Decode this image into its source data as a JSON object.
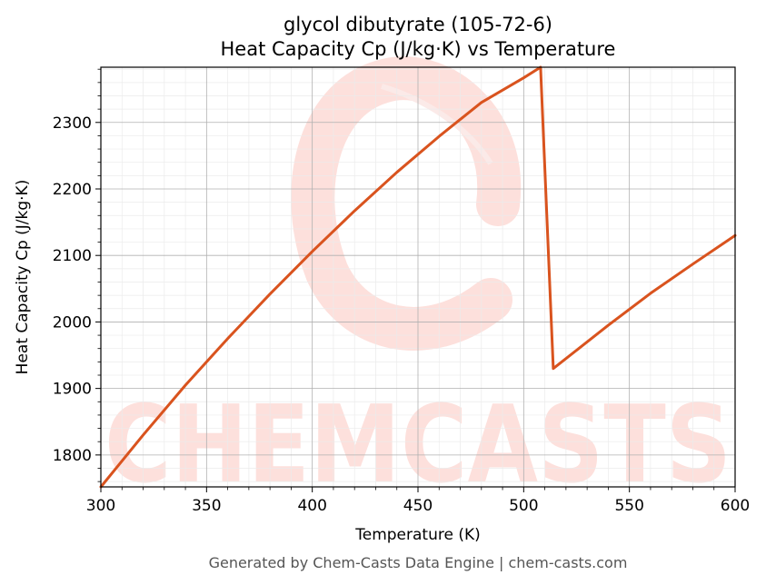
{
  "chart_data": {
    "type": "line",
    "title": "glycol dibutyrate (105-72-6)",
    "subtitle": "Heat Capacity Cp (J/kg·K) vs Temperature",
    "xlabel": "Temperature (K)",
    "ylabel": "Heat Capacity Cp (J/kg·K)",
    "xlim": [
      300,
      600
    ],
    "ylim": [
      1752,
      2383
    ],
    "xticks": [
      300,
      350,
      400,
      450,
      500,
      550,
      600
    ],
    "yticks": [
      1800,
      1900,
      2000,
      2100,
      2200,
      2300
    ],
    "grid": true,
    "legend": "none",
    "series": [
      {
        "x": [
          300,
          320,
          340,
          360,
          380,
          400,
          420,
          440,
          460,
          480,
          500,
          508,
          514,
          520,
          540,
          560,
          580,
          600
        ],
        "y": [
          1752,
          1830,
          1905,
          1975,
          2042,
          2106,
          2167,
          2225,
          2279,
          2330,
          2367,
          2383,
          1930,
          1945,
          1995,
          2043,
          2087,
          2130
        ],
        "color": "#d9531e"
      }
    ]
  },
  "watermark": {
    "text": "CHEMCASTS",
    "color": "#fde0dc"
  },
  "footer": "Generated by Chem-Casts Data Engine | chem-casts.com"
}
